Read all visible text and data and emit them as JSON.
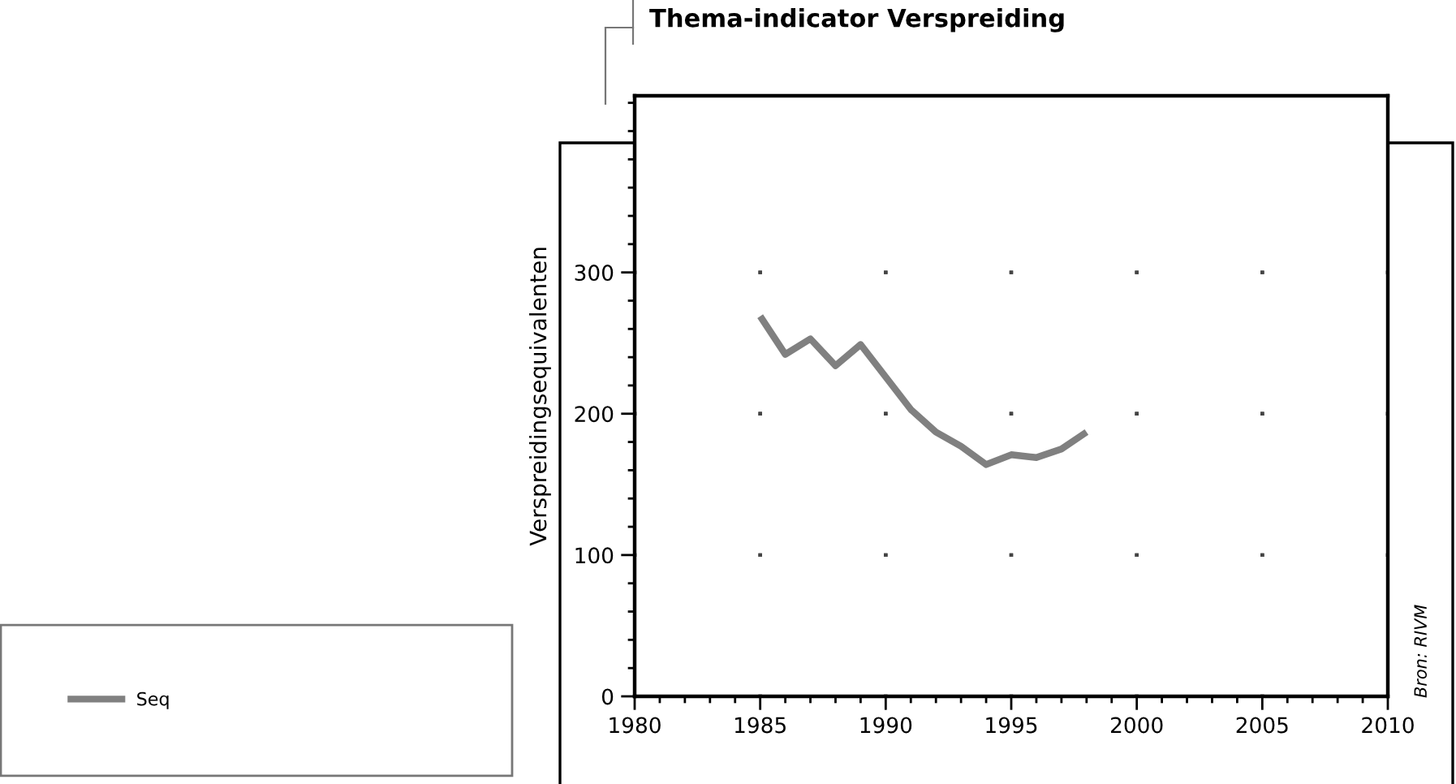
{
  "chart_data": {
    "type": "line",
    "title": "Thema-indicator Verspreiding",
    "ylabel": "Verspreidingsequivalenten",
    "annotations": [
      "Bron: RIVM"
    ],
    "x": [
      1985,
      1986,
      1987,
      1988,
      1989,
      1990,
      1991,
      1992,
      1993,
      1994,
      1995,
      1996,
      1997,
      1998
    ],
    "series": [
      {
        "name": "Seq",
        "color": "#808080",
        "values": [
          269,
          242,
          253,
          234,
          249,
          226,
          203,
          187,
          177,
          164,
          171,
          169,
          175,
          187
        ]
      }
    ],
    "xlim": [
      1980,
      2010
    ],
    "ylim": [
      0,
      425
    ],
    "xticks": [
      1980,
      {
        "value": 1981,
        "label": null
      },
      {
        "value": 1982,
        "label": null
      },
      {
        "value": 1983,
        "label": null
      },
      {
        "value": 1984,
        "label": null
      },
      1985,
      {
        "value": 1986,
        "label": null
      },
      {
        "value": 1987,
        "label": null
      },
      {
        "value": 1988,
        "label": null
      },
      {
        "value": 1989,
        "label": null
      },
      1990,
      {
        "value": 1991,
        "label": null
      },
      {
        "value": 1992,
        "label": null
      },
      {
        "value": 1993,
        "label": null
      },
      {
        "value": 1994,
        "label": null
      },
      1995,
      {
        "value": 1996,
        "label": null
      },
      {
        "value": 1997,
        "label": null
      },
      {
        "value": 1998,
        "label": null
      },
      {
        "value": 1999,
        "label": null
      },
      2000,
      {
        "value": 2001,
        "label": null
      },
      {
        "value": 2002,
        "label": null
      },
      {
        "value": 2003,
        "label": null
      },
      {
        "value": 2004,
        "label": null
      },
      2005,
      {
        "value": 2006,
        "label": null
      },
      {
        "value": 2007,
        "label": null
      },
      {
        "value": 2008,
        "label": null
      },
      {
        "value": 2009,
        "label": null
      },
      2010
    ],
    "yticks": [
      0,
      {
        "value": 20,
        "label": null
      },
      {
        "value": 40,
        "label": null
      },
      {
        "value": 60,
        "label": null
      },
      {
        "value": 80,
        "label": null
      },
      100,
      {
        "value": 120,
        "label": null
      },
      {
        "value": 140,
        "label": null
      },
      {
        "value": 160,
        "label": null
      },
      {
        "value": 180,
        "label": null
      },
      200,
      {
        "value": 220,
        "label": null
      },
      {
        "value": 240,
        "label": null
      },
      {
        "value": 260,
        "label": null
      },
      {
        "value": 280,
        "label": null
      },
      300,
      {
        "value": 320,
        "label": null
      },
      {
        "value": 340,
        "label": null
      },
      {
        "value": 360,
        "label": null
      },
      {
        "value": 380,
        "label": null
      },
      {
        "value": 400,
        "label": null
      },
      {
        "value": 420,
        "label": null
      }
    ],
    "grid": true,
    "legend": "bottom left",
    "line_style": "solid"
  }
}
